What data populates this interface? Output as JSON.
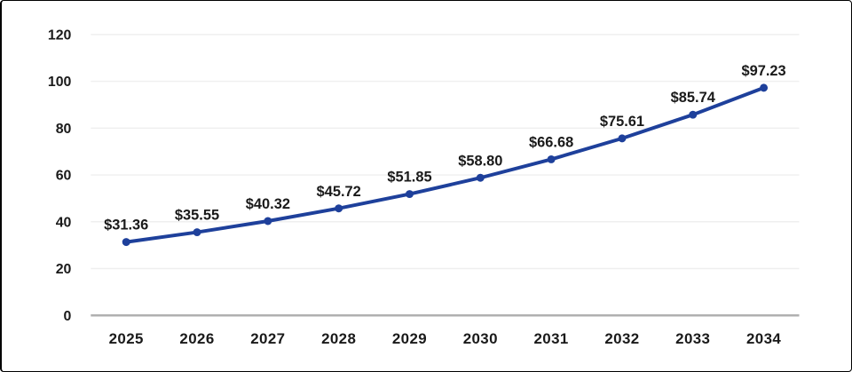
{
  "page": {
    "background": "#ffffff",
    "border_color": "#000000"
  },
  "chart_data": {
    "type": "line",
    "title": "",
    "xlabel": "",
    "ylabel": "",
    "categories": [
      "2025",
      "2026",
      "2027",
      "2028",
      "2029",
      "2030",
      "2031",
      "2032",
      "2033",
      "2034"
    ],
    "values": [
      31.36,
      35.55,
      40.32,
      45.72,
      51.85,
      58.8,
      66.68,
      75.61,
      85.74,
      97.23
    ],
    "data_labels": [
      "$31.36",
      "$35.55",
      "$40.32",
      "$45.72",
      "$51.85",
      "$58.80",
      "$66.68",
      "$75.61",
      "$85.74",
      "$97.23"
    ],
    "y_ticks": [
      0,
      20,
      40,
      60,
      80,
      100,
      120
    ],
    "ylim": [
      0,
      120
    ],
    "grid": true,
    "legend": "none",
    "colors": {
      "line": "#1e409b",
      "marker": "#1e409b",
      "text": "#1a1a1a",
      "gridline": "#efefef",
      "axis_line": "#b0b0b0"
    }
  }
}
